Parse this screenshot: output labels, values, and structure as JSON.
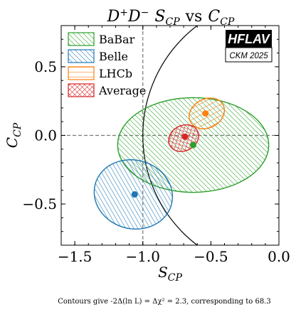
{
  "chart_data": {
    "type": "scatter",
    "title": "D⁺D⁻ S_CP vs C_CP",
    "xlabel": "S_CP",
    "ylabel": "C_CP",
    "xlim": [
      -1.6,
      0.0
    ],
    "ylim": [
      -0.8,
      0.8
    ],
    "x_ticks": [
      -1.5,
      -1.0,
      -0.5,
      0.0
    ],
    "x_tick_labels": [
      "−1.5",
      "−1.0",
      "−0.5",
      "0.0"
    ],
    "y_ticks": [
      -0.5,
      0.0,
      0.5
    ],
    "y_tick_labels": [
      "−0.5",
      "0.0",
      "0.5"
    ],
    "reference_lines": {
      "x": -1.0,
      "y": 0.0,
      "style": "dashed"
    },
    "physical_boundary": "S_CP^2 + C_CP^2 = 1",
    "legend_position": "top-left",
    "series": [
      {
        "name": "BaBar",
        "color": "#2ca02c",
        "hatch": "diagonal",
        "point": [
          -0.63,
          -0.07
        ],
        "contour": {
          "center": [
            -0.63,
            -0.07
          ],
          "rx": 0.555,
          "ry": 0.345,
          "angle_deg": 0
        }
      },
      {
        "name": "Belle",
        "color": "#1f77b4",
        "hatch": "diagonal",
        "point": [
          -1.06,
          -0.43
        ],
        "contour": {
          "center": [
            -1.07,
            -0.43
          ],
          "rx": 0.29,
          "ry": 0.25,
          "angle_deg": -15
        }
      },
      {
        "name": "LHCb",
        "color": "#ff7f0e",
        "hatch": "horizontal",
        "point": [
          -0.54,
          0.16
        ],
        "contour": {
          "center": [
            -0.53,
            0.16
          ],
          "rx": 0.135,
          "ry": 0.105,
          "angle_deg": 28
        }
      },
      {
        "name": "Average",
        "color": "#d62728",
        "hatch": "cross",
        "point": [
          -0.69,
          -0.01
        ],
        "contour": {
          "center": [
            -0.7,
            -0.02
          ],
          "rx": 0.115,
          "ry": 0.092,
          "angle_deg": 28
        }
      }
    ],
    "logo": {
      "text": "HFLAV",
      "subtitle": "CKM 2025"
    },
    "caption": "Contours give -2Δ(ln L) = Δχ² = 2.3, corresponding to 68.3"
  }
}
